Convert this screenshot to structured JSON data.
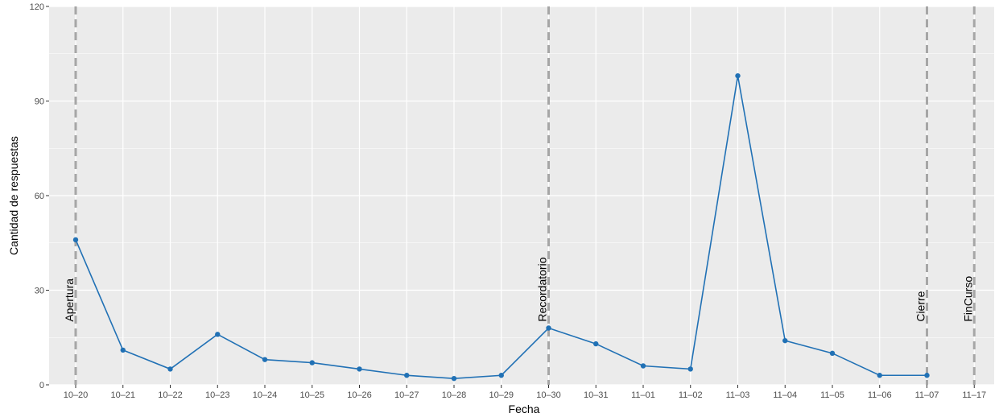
{
  "chart_data": {
    "type": "line",
    "title": "",
    "xlabel": "Fecha",
    "ylabel": "Cantidad de respuestas",
    "ylim": [
      0,
      120
    ],
    "yticks": [
      0,
      30,
      60,
      90,
      120
    ],
    "categories": [
      "10–20",
      "10–21",
      "10–22",
      "10–23",
      "10–24",
      "10–25",
      "10–26",
      "10–27",
      "10–28",
      "10–29",
      "10–30",
      "10–31",
      "11–01",
      "11–02",
      "11–03",
      "11–04",
      "11–05",
      "11–06",
      "11–07",
      "11–17"
    ],
    "series": [
      {
        "values": [
          46,
          11,
          5,
          16,
          8,
          7,
          5,
          3,
          2,
          3,
          18,
          13,
          6,
          5,
          98,
          14,
          10,
          3,
          3,
          null
        ]
      }
    ],
    "events": [
      {
        "category": "10–20",
        "label": "Apertura"
      },
      {
        "category": "10–30",
        "label": "Recordatorio"
      },
      {
        "category": "11–07",
        "label": "Cierre"
      },
      {
        "category": "11–17",
        "label": "FinCurso"
      }
    ],
    "grid": true,
    "legend": "none",
    "colors": {
      "panel": "#EBEBEB",
      "grid": "#FFFFFF",
      "line": "#2171B5",
      "event_line": "#A6A6A6"
    }
  }
}
